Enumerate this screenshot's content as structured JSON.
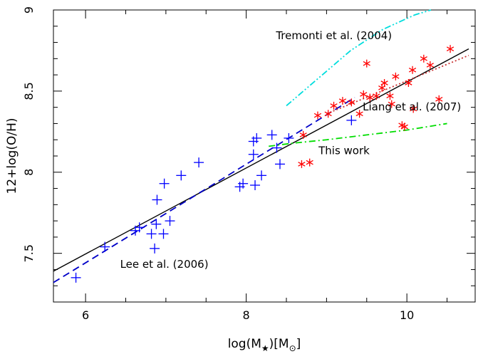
{
  "chart_data": {
    "type": "scatter",
    "xlabel": "log(M★)[M⊙]",
    "xlabel_main": "log(M",
    "xlabel_sub": "★",
    "xlabel_mid": ")[M",
    "xlabel_sub2": "⊙",
    "xlabel_end": "]",
    "ylabel": "12+log(O/H)",
    "xlim": [
      5.6,
      10.85
    ],
    "ylim": [
      7.2,
      9.0
    ],
    "x_ticks": [
      6,
      8,
      10
    ],
    "x_tick_labels": [
      "6",
      "8",
      "10"
    ],
    "y_ticks": [
      7.5,
      8,
      8.5,
      9
    ],
    "y_tick_labels": [
      "7.5",
      "8",
      "8.5",
      "9"
    ],
    "series": [
      {
        "marker": "plus",
        "color": "#0000ff",
        "points": [
          [
            5.88,
            7.35
          ],
          [
            6.24,
            7.54
          ],
          [
            6.62,
            7.64
          ],
          [
            6.67,
            7.66
          ],
          [
            6.82,
            7.62
          ],
          [
            6.86,
            7.53
          ],
          [
            6.88,
            7.68
          ],
          [
            6.89,
            7.83
          ],
          [
            6.97,
            7.62
          ],
          [
            6.98,
            7.93
          ],
          [
            7.05,
            7.7
          ],
          [
            7.19,
            7.98
          ],
          [
            7.41,
            8.06
          ],
          [
            7.92,
            7.91
          ],
          [
            7.96,
            7.93
          ],
          [
            8.09,
            8.19
          ],
          [
            8.09,
            8.11
          ],
          [
            8.11,
            7.92
          ],
          [
            8.13,
            8.21
          ],
          [
            8.19,
            7.98
          ],
          [
            8.32,
            8.23
          ],
          [
            8.38,
            8.15
          ],
          [
            8.42,
            8.05
          ],
          [
            8.53,
            8.21
          ],
          [
            9.31,
            8.32
          ]
        ]
      },
      {
        "marker": "asterisk",
        "color": "#ff0000",
        "points": [
          [
            8.69,
            8.05
          ],
          [
            8.79,
            8.06
          ],
          [
            8.71,
            8.23
          ],
          [
            8.89,
            8.35
          ],
          [
            9.02,
            8.36
          ],
          [
            9.09,
            8.41
          ],
          [
            9.2,
            8.44
          ],
          [
            9.31,
            8.43
          ],
          [
            9.41,
            8.36
          ],
          [
            9.46,
            8.48
          ],
          [
            9.5,
            8.67
          ],
          [
            9.54,
            8.46
          ],
          [
            9.62,
            8.47
          ],
          [
            9.69,
            8.52
          ],
          [
            9.72,
            8.55
          ],
          [
            9.79,
            8.47
          ],
          [
            9.81,
            8.42
          ],
          [
            9.86,
            8.59
          ],
          [
            9.94,
            8.29
          ],
          [
            9.97,
            8.28
          ],
          [
            10.02,
            8.55
          ],
          [
            10.07,
            8.63
          ],
          [
            10.08,
            8.39
          ],
          [
            10.21,
            8.7
          ],
          [
            10.29,
            8.66
          ],
          [
            10.4,
            8.45
          ],
          [
            10.54,
            8.76
          ]
        ]
      }
    ],
    "lines": [
      {
        "style": "solid",
        "color": "#000000",
        "points": [
          [
            5.6,
            7.39
          ],
          [
            10.77,
            8.76
          ]
        ]
      },
      {
        "style": "dashed",
        "color": "#0000c8",
        "points": [
          [
            5.6,
            7.32
          ],
          [
            9.35,
            8.46
          ]
        ]
      },
      {
        "style": "dotted",
        "color": "#c83232",
        "points": [
          [
            9.0,
            8.36
          ],
          [
            10.77,
            8.72
          ]
        ]
      },
      {
        "style": "dashdot",
        "color": "#00dd00",
        "points": [
          [
            8.28,
            8.16
          ],
          [
            8.6,
            8.18
          ],
          [
            9.0,
            8.2
          ],
          [
            9.5,
            8.23
          ],
          [
            10.0,
            8.26
          ],
          [
            10.5,
            8.3
          ]
        ]
      },
      {
        "style": "dashdotdot",
        "color": "#00dddd",
        "points": [
          [
            8.5,
            8.41
          ],
          [
            8.9,
            8.58
          ],
          [
            9.3,
            8.75
          ],
          [
            9.7,
            8.88
          ],
          [
            10.1,
            8.97
          ],
          [
            10.3,
            9.0
          ]
        ]
      }
    ],
    "annotations": [
      {
        "text": "Tremonti et al. (2004)",
        "x": 8.37,
        "y": 8.82
      },
      {
        "text": "Liang et al. (2007)",
        "x": 9.45,
        "y": 8.38
      },
      {
        "text": "This work",
        "x": 8.9,
        "y": 8.11
      },
      {
        "text": "Lee et al. (2006)",
        "x": 6.43,
        "y": 7.41
      }
    ]
  }
}
